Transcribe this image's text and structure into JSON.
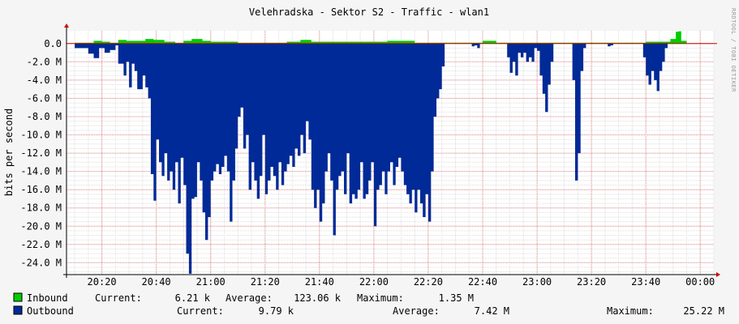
{
  "chart_data": {
    "type": "area",
    "title": "Velehradska - Sektor S2 - Traffic - wlan1",
    "ylabel": "bits per second",
    "watermark": "RRDTOOL / TOBI OETIKER",
    "y_ticks": [
      "0.0",
      "-2.0 M",
      "-4.0 M",
      "-6.0 M",
      "-8.0 M",
      "-10.0 M",
      "-12.0 M",
      "-14.0 M",
      "-16.0 M",
      "-18.0 M",
      "-20.0 M",
      "-22.0 M",
      "-24.0 M"
    ],
    "x_ticks": [
      "20:20",
      "20:40",
      "21:00",
      "21:20",
      "21:40",
      "22:00",
      "22:20",
      "22:40",
      "23:00",
      "23:20",
      "23:40",
      "00:00"
    ],
    "ylim_mbps": [
      -25.3,
      1.4
    ],
    "x_start": "20:07",
    "x_end": "00:05",
    "grid": true,
    "colors": {
      "inbound": "#00cc00",
      "outbound": "#002a97",
      "grid_major": "#e08080",
      "grid_minor": "#dddddd",
      "axis": "#cc0000"
    },
    "series": [
      {
        "name": "Inbound",
        "unit": "Mbps",
        "points": [
          [
            "20:10",
            0.1
          ],
          [
            "20:14",
            0.1
          ],
          [
            "20:17",
            0.3
          ],
          [
            "20:20",
            0.2
          ],
          [
            "20:23",
            0.1
          ],
          [
            "20:26",
            0.4
          ],
          [
            "20:29",
            0.3
          ],
          [
            "20:33",
            0.3
          ],
          [
            "20:36",
            0.5
          ],
          [
            "20:39",
            0.4
          ],
          [
            "20:43",
            0.2
          ],
          [
            "20:47",
            0.1
          ],
          [
            "20:50",
            0.3
          ],
          [
            "20:53",
            0.5
          ],
          [
            "20:55",
            0.5
          ],
          [
            "20:57",
            0.3
          ],
          [
            "21:00",
            0.2
          ],
          [
            "21:10",
            0.1
          ],
          [
            "21:20",
            0.1
          ],
          [
            "21:28",
            0.2
          ],
          [
            "21:33",
            0.4
          ],
          [
            "21:37",
            0.2
          ],
          [
            "21:45",
            0.2
          ],
          [
            "21:55",
            0.2
          ],
          [
            "22:05",
            0.3
          ],
          [
            "22:15",
            0.1
          ],
          [
            "22:25",
            0.1
          ],
          [
            "22:35",
            0.1
          ],
          [
            "22:40",
            0.3
          ],
          [
            "22:45",
            0.1
          ],
          [
            "22:50",
            0.1
          ],
          [
            "23:00",
            0.1
          ],
          [
            "23:40",
            0.2
          ],
          [
            "23:45",
            0.2
          ],
          [
            "23:49",
            0.5
          ],
          [
            "23:51",
            1.3
          ],
          [
            "23:52",
            1.35
          ],
          [
            "23:53",
            0.3
          ],
          [
            "23:55",
            0.0
          ]
        ]
      },
      {
        "name": "Outbound",
        "unit": "Mbps",
        "points": [
          [
            "20:10",
            -0.5
          ],
          [
            "20:13",
            -0.5
          ],
          [
            "20:15",
            -1.1
          ],
          [
            "20:17",
            -1.6
          ],
          [
            "20:19",
            -0.5
          ],
          [
            "20:21",
            -1.0
          ],
          [
            "20:23",
            -0.7
          ],
          [
            "20:25",
            -0.2
          ],
          [
            "20:26",
            -2.2
          ],
          [
            "20:28",
            -3.5
          ],
          [
            "20:29",
            -2.0
          ],
          [
            "20:30",
            -4.8
          ],
          [
            "20:31",
            -2.2
          ],
          [
            "20:32",
            -3.0
          ],
          [
            "20:33",
            -5.0
          ],
          [
            "20:35",
            -3.5
          ],
          [
            "20:36",
            -4.8
          ],
          [
            "20:37",
            -6.0
          ],
          [
            "20:38",
            -14.3
          ],
          [
            "20:39",
            -17.2
          ],
          [
            "20:40",
            -10.5
          ],
          [
            "20:41",
            -13.0
          ],
          [
            "20:42",
            -14.5
          ],
          [
            "20:43",
            -12.0
          ],
          [
            "20:44",
            -15.0
          ],
          [
            "20:45",
            -14.0
          ],
          [
            "20:46",
            -16.0
          ],
          [
            "20:47",
            -13.0
          ],
          [
            "20:48",
            -17.5
          ],
          [
            "20:49",
            -12.5
          ],
          [
            "20:50",
            -15.5
          ],
          [
            "20:51",
            -23.0
          ],
          [
            "20:52",
            -25.2
          ],
          [
            "20:53",
            -17.0
          ],
          [
            "20:54",
            -16.8
          ],
          [
            "20:55",
            -13.0
          ],
          [
            "20:56",
            -15.0
          ],
          [
            "20:57",
            -18.5
          ],
          [
            "20:58",
            -21.5
          ],
          [
            "20:59",
            -19.0
          ],
          [
            "21:00",
            -15.0
          ],
          [
            "21:01",
            -14.0
          ],
          [
            "21:02",
            -13.2
          ],
          [
            "21:03",
            -14.3
          ],
          [
            "21:04",
            -13.5
          ],
          [
            "21:05",
            -12.3
          ],
          [
            "21:06",
            -14.0
          ],
          [
            "21:07",
            -19.5
          ],
          [
            "21:08",
            -15.0
          ],
          [
            "21:09",
            -11.5
          ],
          [
            "21:10",
            -8.0
          ],
          [
            "21:11",
            -7.0
          ],
          [
            "21:12",
            -11.5
          ],
          [
            "21:13",
            -10.0
          ],
          [
            "21:14",
            -16.0
          ],
          [
            "21:15",
            -13.0
          ],
          [
            "21:16",
            -15.0
          ],
          [
            "21:17",
            -17.0
          ],
          [
            "21:18",
            -14.5
          ],
          [
            "21:19",
            -10.0
          ],
          [
            "21:20",
            -16.5
          ],
          [
            "21:21",
            -15.0
          ],
          [
            "21:22",
            -13.5
          ],
          [
            "21:23",
            -14.5
          ],
          [
            "21:24",
            -16.0
          ],
          [
            "21:25",
            -13.0
          ],
          [
            "21:26",
            -15.5
          ],
          [
            "21:27",
            -14.0
          ],
          [
            "21:28",
            -13.2
          ],
          [
            "21:29",
            -12.3
          ],
          [
            "21:30",
            -13.5
          ],
          [
            "21:31",
            -11.5
          ],
          [
            "21:32",
            -12.3
          ],
          [
            "21:33",
            -10.0
          ],
          [
            "21:34",
            -12.0
          ],
          [
            "21:35",
            -8.5
          ],
          [
            "21:36",
            -10.5
          ],
          [
            "21:37",
            -16.0
          ],
          [
            "21:38",
            -18.0
          ],
          [
            "21:39",
            -16.0
          ],
          [
            "21:40",
            -19.5
          ],
          [
            "21:41",
            -17.5
          ],
          [
            "21:42",
            -14.0
          ],
          [
            "21:43",
            -12.0
          ],
          [
            "21:44",
            -15.0
          ],
          [
            "21:45",
            -21.0
          ],
          [
            "21:46",
            -16.0
          ],
          [
            "21:47",
            -14.5
          ],
          [
            "21:48",
            -14.0
          ],
          [
            "21:49",
            -16.5
          ],
          [
            "21:50",
            -12.0
          ],
          [
            "21:51",
            -17.5
          ],
          [
            "21:52",
            -16.5
          ],
          [
            "21:53",
            -17.0
          ],
          [
            "21:54",
            -16.0
          ],
          [
            "21:55",
            -13.0
          ],
          [
            "21:56",
            -17.0
          ],
          [
            "21:57",
            -16.5
          ],
          [
            "21:58",
            -15.0
          ],
          [
            "21:59",
            -13.0
          ],
          [
            "22:00",
            -20.0
          ],
          [
            "22:01",
            -16.0
          ],
          [
            "22:02",
            -15.5
          ],
          [
            "22:03",
            -14.0
          ],
          [
            "22:04",
            -16.5
          ],
          [
            "22:05",
            -14.0
          ],
          [
            "22:06",
            -13.0
          ],
          [
            "22:07",
            -15.5
          ],
          [
            "22:08",
            -13.5
          ],
          [
            "22:09",
            -12.5
          ],
          [
            "22:10",
            -14.0
          ],
          [
            "22:11",
            -15.5
          ],
          [
            "22:12",
            -16.5
          ],
          [
            "22:13",
            -17.5
          ],
          [
            "22:14",
            -16.0
          ],
          [
            "22:15",
            -18.5
          ],
          [
            "22:16",
            -16.0
          ],
          [
            "22:17",
            -17.5
          ],
          [
            "22:18",
            -19.0
          ],
          [
            "22:19",
            -16.5
          ],
          [
            "22:20",
            -19.5
          ],
          [
            "22:21",
            -14.0
          ],
          [
            "22:22",
            -8.0
          ],
          [
            "22:23",
            -6.0
          ],
          [
            "22:24",
            -5.0
          ],
          [
            "22:25",
            -2.5
          ],
          [
            "22:26",
            0.0
          ],
          [
            "22:35",
            0.0
          ],
          [
            "22:36",
            -0.3
          ],
          [
            "22:37",
            -0.2
          ],
          [
            "22:38",
            -0.5
          ],
          [
            "22:39",
            0.0
          ],
          [
            "22:48",
            0.0
          ],
          [
            "22:49",
            -1.5
          ],
          [
            "22:50",
            -3.2
          ],
          [
            "22:51",
            -2.0
          ],
          [
            "22:52",
            -3.5
          ],
          [
            "22:53",
            -1.0
          ],
          [
            "22:54",
            -1.5
          ],
          [
            "22:55",
            -1.0
          ],
          [
            "22:56",
            -2.0
          ],
          [
            "22:57",
            -1.5
          ],
          [
            "22:58",
            -2.0
          ],
          [
            "22:59",
            -0.5
          ],
          [
            "23:00",
            -0.8
          ],
          [
            "23:01",
            -3.5
          ],
          [
            "23:02",
            -5.5
          ],
          [
            "23:03",
            -7.5
          ],
          [
            "23:04",
            -4.5
          ],
          [
            "23:05",
            -2.0
          ],
          [
            "23:06",
            0.0
          ],
          [
            "23:12",
            0.0
          ],
          [
            "23:13",
            -4.0
          ],
          [
            "23:14",
            -15.0
          ],
          [
            "23:15",
            -12.0
          ],
          [
            "23:16",
            -3.0
          ],
          [
            "23:17",
            -0.5
          ],
          [
            "23:18",
            0.0
          ],
          [
            "23:25",
            0.0
          ],
          [
            "23:26",
            -0.3
          ],
          [
            "23:27",
            -0.2
          ],
          [
            "23:28",
            0.0
          ],
          [
            "23:38",
            0.0
          ],
          [
            "23:39",
            -1.5
          ],
          [
            "23:40",
            -3.5
          ],
          [
            "23:41",
            -4.5
          ],
          [
            "23:42",
            -3.0
          ],
          [
            "23:43",
            -4.0
          ],
          [
            "23:44",
            -5.2
          ],
          [
            "23:45",
            -3.0
          ],
          [
            "23:46",
            -2.0
          ],
          [
            "23:47",
            -0.5
          ],
          [
            "23:48",
            0.0
          ],
          [
            "23:55",
            0.0
          ]
        ]
      }
    ]
  },
  "legend": {
    "inbound": {
      "name": "Inbound",
      "current_label": "Current:",
      "current_value": "6.21 k",
      "average_label": "Average:",
      "average_value": "123.06 k",
      "maximum_label": "Maximum:",
      "maximum_value": "1.35 M"
    },
    "outbound": {
      "name": "Outbound",
      "current_label": "Current:",
      "current_value": "9.79 k",
      "average_label": "Average:",
      "average_value": "7.42 M",
      "maximum_label": "Maximum:",
      "maximum_value": "25.22 M"
    }
  }
}
